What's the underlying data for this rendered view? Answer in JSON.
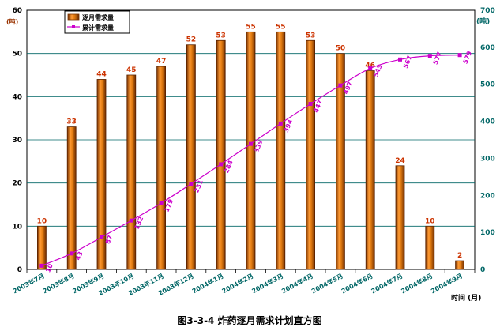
{
  "chart_data": {
    "type": "bar",
    "title": "图3-3-4   炸药逐月需求计划直方图",
    "categories": [
      "2003年7月",
      "2003年8月",
      "2003年9月",
      "2003年10月",
      "2003年11月",
      "2003年12月",
      "2004年1月",
      "2004年2月",
      "2004年3月",
      "2004年4月",
      "2004年5月",
      "2004年6月",
      "2004年7月",
      "2004年8月",
      "2004年9月"
    ],
    "series": [
      {
        "name": "逐月需求量",
        "kind": "bar",
        "axis": "left",
        "values": [
          10,
          33,
          44,
          45,
          47,
          52,
          53,
          55,
          55,
          53,
          50,
          46,
          24,
          10,
          2
        ],
        "color": "#cc6600"
      },
      {
        "name": "累计需求量",
        "kind": "line",
        "axis": "right",
        "values": [
          10,
          43,
          87,
          132,
          179,
          231,
          284,
          339,
          394,
          447,
          497,
          543,
          567,
          577,
          579
        ],
        "color": "#cc00cc"
      }
    ],
    "ylabel_left": "(吨)",
    "ylabel_right": "(吨)",
    "xlabel": "时间 (月)",
    "ylim_left": [
      0,
      60
    ],
    "ylim_right": [
      0,
      700
    ],
    "yticks_left": [
      "0",
      "10",
      "20",
      "30",
      "40",
      "50",
      "60"
    ],
    "yticks_right": [
      "0",
      "100",
      "200",
      "300",
      "400",
      "500",
      "600",
      "700"
    ],
    "grid": true,
    "legend_position": "top-left",
    "colors": {
      "bar": "#cc6600",
      "bar_light": "#ffaa44",
      "line": "#cc00cc",
      "grid": "#006666",
      "right_axis": "#006666"
    }
  }
}
